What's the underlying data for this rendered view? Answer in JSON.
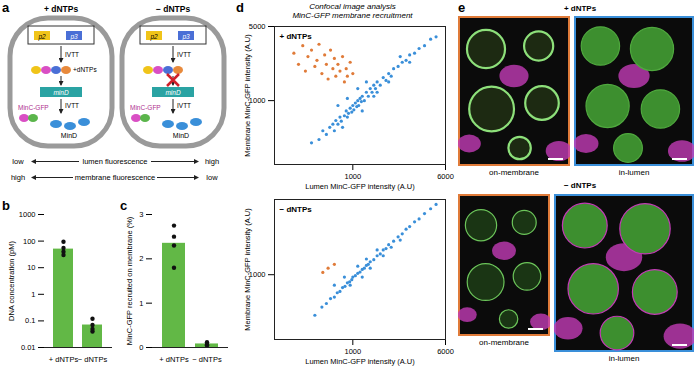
{
  "diagram": {
    "panel": "a",
    "cells": [
      {
        "title": "+ dNTPs",
        "promoters": [
          "p2",
          "p3"
        ],
        "process": "IVTT",
        "reagent": "+dNTPs",
        "gene": "minD",
        "protein": "MinD",
        "fusion": "MinC-GFP"
      },
      {
        "title": "− dNTPs",
        "promoters": [
          "p2",
          "p3"
        ],
        "process": "IVTT",
        "gene": "minD",
        "protein": "MinD",
        "fusion": "MinC-GFP"
      }
    ],
    "readouts": [
      {
        "left": "low",
        "quantity": "lumen fluorescence",
        "right": "high"
      },
      {
        "left": "high",
        "quantity": "membrane fluorescence",
        "right": "low"
      }
    ]
  },
  "chart_data": [
    {
      "type": "bar",
      "panel": "b",
      "categories": [
        "+ dNTPs",
        "− dNTPs"
      ],
      "values": [
        50,
        0.07
      ],
      "replicates": [
        [
          95,
          55,
          40,
          30
        ],
        [
          0.12,
          0.07,
          0.05,
          0.04
        ]
      ],
      "color": "#62b846",
      "log": "y",
      "ylim": [
        0.01,
        1000
      ],
      "yticks": [
        0.01,
        0.1,
        1,
        10,
        100,
        1000
      ],
      "y_label": "DNA concentration (pM)"
    },
    {
      "type": "bar",
      "panel": "c",
      "categories": [
        "+ dNTPs",
        "− dNTPs"
      ],
      "values": [
        2.35,
        0.08
      ],
      "replicates": [
        [
          2.75,
          2.5,
          2.3,
          1.8
        ],
        [
          0.12,
          0.08,
          0.06,
          0.05
        ]
      ],
      "color": "#62b846",
      "ylim": [
        0,
        3
      ],
      "yticks": [
        0,
        1,
        2,
        3
      ],
      "y_label": "MinC-GFP recruited on membrane (%)"
    },
    {
      "type": "scatter",
      "panel": "d",
      "title": "Confocal image analysis",
      "subtitle": "MinC-GFP membrane recruitment",
      "annotation": "+ dNTPs",
      "log": true,
      "xlim": [
        220,
        6000
      ],
      "ylim": [
        250,
        5000
      ],
      "xticks": [
        1000,
        6000
      ],
      "yticks": [
        1000,
        5000
      ],
      "x_label": "Lumen MinC-GFP intensity (A.U)",
      "y_label": "Membrane MinC-GFP intensity (A.U)",
      "series": [
        {
          "color": "#3a8fd9",
          "x": [
            450,
            520,
            560,
            600,
            640,
            680,
            700,
            720,
            750,
            780,
            800,
            820,
            850,
            880,
            900,
            920,
            950,
            980,
            1000,
            1020,
            1050,
            1080,
            1100,
            1120,
            1150,
            1180,
            1200,
            1250,
            1300,
            1350,
            1400,
            1450,
            1500,
            1550,
            1600,
            1700,
            1800,
            1900,
            2000,
            2100,
            2200,
            2400,
            2600,
            2800,
            3000,
            3300,
            3600,
            4000,
            4500,
            5000,
            1100,
            1300,
            900,
            1600,
            2000,
            750,
            1200,
            1500,
            2500,
            3000
          ],
          "y": [
            400,
            430,
            520,
            480,
            560,
            600,
            520,
            650,
            600,
            700,
            640,
            560,
            720,
            800,
            700,
            760,
            850,
            780,
            900,
            820,
            950,
            880,
            1000,
            900,
            1050,
            980,
            1100,
            1000,
            1200,
            1100,
            1300,
            1200,
            1400,
            1300,
            1500,
            1400,
            1650,
            1550,
            1800,
            1700,
            2000,
            2100,
            2300,
            2400,
            2700,
            2800,
            3100,
            3300,
            3800,
            4000,
            1300,
            1500,
            1050,
            1200,
            1500,
            900,
            800,
            1100,
            2600,
            2300
          ]
        },
        {
          "color": "#e07b39",
          "x": [
            320,
            350,
            380,
            400,
            420,
            450,
            480,
            500,
            520,
            550,
            580,
            600,
            620,
            650,
            680,
            700,
            720,
            750,
            780,
            820,
            850,
            880,
            900,
            950,
            1000
          ],
          "y": [
            2800,
            2200,
            3300,
            1900,
            2600,
            3000,
            2100,
            2400,
            3400,
            1800,
            2700,
            2200,
            1600,
            3000,
            2000,
            2500,
            1700,
            2200,
            1900,
            2600,
            1500,
            2000,
            1700,
            2300,
            1800
          ]
        }
      ]
    },
    {
      "type": "scatter",
      "annotation": "− dNTPs",
      "log": true,
      "xlim": [
        220,
        6000
      ],
      "ylim": [
        250,
        5000
      ],
      "xticks": [
        1000,
        6000
      ],
      "yticks": [
        1000
      ],
      "x_label": "Lumen MinC-GFP intensity (A.U)",
      "y_label": "Membrane MinC-GFP intensity (A.U)",
      "series": [
        {
          "color": "#3a8fd9",
          "x": [
            480,
            550,
            600,
            650,
            700,
            740,
            780,
            820,
            860,
            900,
            940,
            980,
            1000,
            1050,
            1100,
            1150,
            1200,
            1250,
            1300,
            1350,
            1400,
            1500,
            1600,
            1700,
            1800,
            1900,
            2000,
            2200,
            2400,
            2600,
            2800,
            3000,
            3300,
            3600,
            4000,
            4500,
            5000,
            850,
            950,
            1100,
            1200,
            1400,
            1600,
            2100,
            700,
            1300,
            1800,
            2500
          ],
          "y": [
            420,
            500,
            540,
            600,
            620,
            680,
            700,
            760,
            780,
            840,
            860,
            900,
            950,
            980,
            1030,
            1060,
            1120,
            1150,
            1220,
            1250,
            1320,
            1380,
            1500,
            1560,
            1700,
            1750,
            1900,
            2050,
            2250,
            2400,
            2650,
            2800,
            3100,
            3300,
            3700,
            4100,
            4500,
            950,
            800,
            1200,
            950,
            1150,
            1700,
            1800,
            800,
            1400,
            1500,
            2100
          ]
        },
        {
          "color": "#e07b39",
          "x": [
            560,
            620,
            700
          ],
          "y": [
            1050,
            1150,
            1250
          ]
        }
      ]
    }
  ],
  "images": {
    "panel": "e",
    "groups": [
      {
        "condition": "+ dNTPs",
        "tiles": [
          {
            "label": "on-membrane",
            "color": "#e07b39"
          },
          {
            "label": "in-lumen",
            "color": "#3a8fd9"
          }
        ]
      },
      {
        "condition": "− dNTPs",
        "tiles": [
          {
            "label": "on-membrane",
            "color": "#e07b39"
          },
          {
            "label": "in-lumen",
            "color": "#3a8fd9"
          }
        ]
      }
    ]
  }
}
